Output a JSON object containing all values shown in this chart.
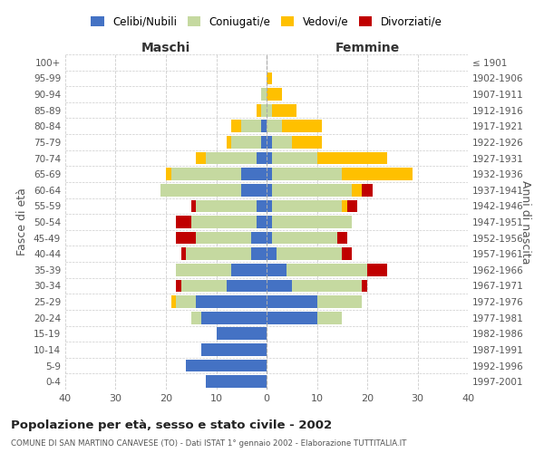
{
  "age_groups": [
    "0-4",
    "5-9",
    "10-14",
    "15-19",
    "20-24",
    "25-29",
    "30-34",
    "35-39",
    "40-44",
    "45-49",
    "50-54",
    "55-59",
    "60-64",
    "65-69",
    "70-74",
    "75-79",
    "80-84",
    "85-89",
    "90-94",
    "95-99",
    "100+"
  ],
  "birth_years": [
    "1997-2001",
    "1992-1996",
    "1987-1991",
    "1982-1986",
    "1977-1981",
    "1972-1976",
    "1967-1971",
    "1962-1966",
    "1957-1961",
    "1952-1956",
    "1947-1951",
    "1942-1946",
    "1937-1941",
    "1932-1936",
    "1927-1931",
    "1922-1926",
    "1917-1921",
    "1912-1916",
    "1907-1911",
    "1902-1906",
    "≤ 1901"
  ],
  "maschi": {
    "celibi": [
      12,
      16,
      13,
      10,
      13,
      14,
      8,
      7,
      3,
      3,
      2,
      2,
      5,
      5,
      2,
      1,
      1,
      0,
      0,
      0,
      0
    ],
    "coniugati": [
      0,
      0,
      0,
      0,
      2,
      4,
      9,
      11,
      13,
      11,
      13,
      12,
      16,
      14,
      10,
      6,
      4,
      1,
      1,
      0,
      0
    ],
    "vedovi": [
      0,
      0,
      0,
      0,
      0,
      1,
      0,
      0,
      0,
      0,
      0,
      0,
      0,
      1,
      2,
      1,
      2,
      1,
      0,
      0,
      0
    ],
    "divorziati": [
      0,
      0,
      0,
      0,
      0,
      0,
      1,
      0,
      1,
      4,
      3,
      1,
      0,
      0,
      0,
      0,
      0,
      0,
      0,
      0,
      0
    ]
  },
  "femmine": {
    "nubili": [
      0,
      0,
      0,
      0,
      10,
      10,
      5,
      4,
      2,
      1,
      1,
      1,
      1,
      1,
      1,
      1,
      0,
      0,
      0,
      0,
      0
    ],
    "coniugate": [
      0,
      0,
      0,
      0,
      5,
      9,
      14,
      16,
      13,
      13,
      16,
      14,
      16,
      14,
      9,
      4,
      3,
      1,
      0,
      0,
      0
    ],
    "vedove": [
      0,
      0,
      0,
      0,
      0,
      0,
      0,
      0,
      0,
      0,
      0,
      1,
      2,
      14,
      14,
      6,
      8,
      5,
      3,
      1,
      0
    ],
    "divorziate": [
      0,
      0,
      0,
      0,
      0,
      0,
      1,
      4,
      2,
      2,
      0,
      2,
      2,
      0,
      0,
      0,
      0,
      0,
      0,
      0,
      0
    ]
  },
  "colors": {
    "celibi": "#4472c4",
    "coniugati": "#c5d9a0",
    "vedovi": "#ffc000",
    "divorziati": "#c00000"
  },
  "title": "Popolazione per età, sesso e stato civile - 2002",
  "subtitle": "COMUNE DI SAN MARTINO CANAVESE (TO) - Dati ISTAT 1° gennaio 2002 - Elaborazione TUTTITALIA.IT",
  "xlabel_left": "Maschi",
  "xlabel_right": "Femmine",
  "ylabel_left": "Fasce di età",
  "ylabel_right": "Anni di nascita",
  "xlim": 40,
  "legend_labels": [
    "Celibi/Nubili",
    "Coniugati/e",
    "Vedovi/e",
    "Divorziati/e"
  ],
  "bg_color": "#ffffff",
  "grid_color": "#cccccc"
}
